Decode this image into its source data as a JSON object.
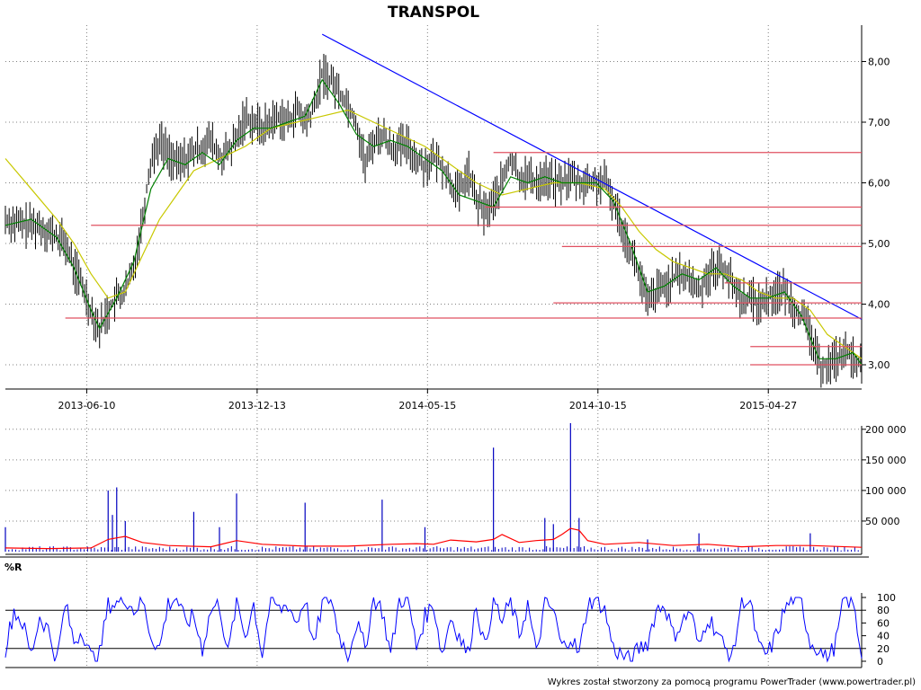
{
  "title": "TRANSPOL",
  "footer": "Wykres został stworzony za pomocą programu PowerTrader (www.powertrader.pl)",
  "colors": {
    "price_bar": "#000000",
    "ma_short": "#008000",
    "ma_long": "#c8c800",
    "trend_line": "#0000ff",
    "support_lines": "#e05060",
    "volume_bars": "#0000c0",
    "volume_ma": "#ff0000",
    "williams": "#0000ff",
    "grid": "#808080"
  },
  "chart_data": [
    {
      "type": "line",
      "name": "price",
      "title": "TRANSPOL",
      "x_tick_labels": [
        "2013-06-10",
        "2013-12-13",
        "2014-05-15",
        "2014-10-15",
        "2015-04-27"
      ],
      "y_tick_labels": [
        "3,00",
        "4,00",
        "5,00",
        "6,00",
        "7,00",
        "8,00"
      ],
      "ylim": [
        2.6,
        8.6
      ],
      "xlim": [
        0,
        100
      ],
      "grid": true,
      "x_tick_positions": [
        9.5,
        29.4,
        49.3,
        69.2,
        89.1
      ],
      "close": [
        [
          0,
          5.4
        ],
        [
          2,
          5.3
        ],
        [
          4,
          5.3
        ],
        [
          6,
          5.1
        ],
        [
          7,
          5.0
        ],
        [
          8,
          4.6
        ],
        [
          9,
          4.3
        ],
        [
          10,
          3.9
        ],
        [
          11,
          3.6
        ],
        [
          12,
          3.9
        ],
        [
          13,
          4.1
        ],
        [
          14,
          4.2
        ],
        [
          15,
          4.6
        ],
        [
          16,
          5.4
        ],
        [
          17,
          6.4
        ],
        [
          18,
          6.7
        ],
        [
          19,
          6.5
        ],
        [
          20,
          6.3
        ],
        [
          21,
          6.4
        ],
        [
          22,
          6.5
        ],
        [
          23,
          6.6
        ],
        [
          24,
          6.7
        ],
        [
          25,
          6.4
        ],
        [
          26,
          6.5
        ],
        [
          27,
          6.7
        ],
        [
          28,
          7.1
        ],
        [
          29,
          7.0
        ],
        [
          30,
          6.9
        ],
        [
          31,
          7.0
        ],
        [
          32,
          7.1
        ],
        [
          33,
          7.0
        ],
        [
          34,
          7.2
        ],
        [
          35,
          7.0
        ],
        [
          36,
          7.2
        ],
        [
          37,
          7.8
        ],
        [
          38,
          7.7
        ],
        [
          39,
          7.5
        ],
        [
          40,
          7.3
        ],
        [
          41,
          7.0
        ],
        [
          42,
          6.3
        ],
        [
          43,
          6.7
        ],
        [
          44,
          6.8
        ],
        [
          45,
          6.6
        ],
        [
          46,
          6.6
        ],
        [
          47,
          6.6
        ],
        [
          48,
          6.4
        ],
        [
          49,
          6.3
        ],
        [
          50,
          6.4
        ],
        [
          51,
          6.3
        ],
        [
          52,
          6.0
        ],
        [
          53,
          5.8
        ],
        [
          54,
          6.2
        ],
        [
          55,
          5.7
        ],
        [
          56,
          5.5
        ],
        [
          57,
          5.7
        ],
        [
          58,
          6.0
        ],
        [
          59,
          6.4
        ],
        [
          60,
          6.1
        ],
        [
          61,
          6.1
        ],
        [
          62,
          6.0
        ],
        [
          63,
          6.1
        ],
        [
          64,
          6.0
        ],
        [
          65,
          6.0
        ],
        [
          66,
          6.1
        ],
        [
          67,
          6.0
        ],
        [
          68,
          6.0
        ],
        [
          69,
          6.0
        ],
        [
          70,
          6.0
        ],
        [
          71,
          5.7
        ],
        [
          72,
          5.3
        ],
        [
          73,
          4.9
        ],
        [
          74,
          4.5
        ],
        [
          75,
          4.0
        ],
        [
          76,
          4.2
        ],
        [
          77,
          4.3
        ],
        [
          78,
          4.4
        ],
        [
          79,
          4.5
        ],
        [
          80,
          4.4
        ],
        [
          81,
          4.2
        ],
        [
          82,
          4.5
        ],
        [
          83,
          4.6
        ],
        [
          84,
          4.6
        ],
        [
          85,
          4.3
        ],
        [
          86,
          4.1
        ],
        [
          87,
          4.1
        ],
        [
          88,
          4.0
        ],
        [
          89,
          4.1
        ],
        [
          90,
          4.2
        ],
        [
          91,
          4.2
        ],
        [
          92,
          4.0
        ],
        [
          93,
          3.8
        ],
        [
          94,
          3.5
        ],
        [
          95,
          3.0
        ],
        [
          96,
          3.0
        ],
        [
          97,
          3.1
        ],
        [
          98,
          3.2
        ],
        [
          99,
          3.1
        ],
        [
          100,
          3.0
        ]
      ],
      "sma_short": [
        [
          0,
          5.3
        ],
        [
          3,
          5.4
        ],
        [
          6,
          5.1
        ],
        [
          8,
          4.6
        ],
        [
          10,
          3.9
        ],
        [
          11,
          3.6
        ],
        [
          13,
          4.1
        ],
        [
          15,
          4.7
        ],
        [
          17,
          5.9
        ],
        [
          19,
          6.4
        ],
        [
          21,
          6.3
        ],
        [
          23,
          6.5
        ],
        [
          25,
          6.3
        ],
        [
          27,
          6.7
        ],
        [
          29,
          6.9
        ],
        [
          31,
          6.9
        ],
        [
          33,
          7.0
        ],
        [
          35,
          7.1
        ],
        [
          37,
          7.7
        ],
        [
          39,
          7.3
        ],
        [
          41,
          6.8
        ],
        [
          43,
          6.6
        ],
        [
          45,
          6.7
        ],
        [
          47,
          6.6
        ],
        [
          49,
          6.4
        ],
        [
          51,
          6.2
        ],
        [
          53,
          5.8
        ],
        [
          55,
          5.7
        ],
        [
          57,
          5.6
        ],
        [
          59,
          6.1
        ],
        [
          61,
          6.0
        ],
        [
          63,
          6.1
        ],
        [
          65,
          6.0
        ],
        [
          67,
          6.0
        ],
        [
          69,
          6.0
        ],
        [
          71,
          5.7
        ],
        [
          73,
          5.0
        ],
        [
          75,
          4.2
        ],
        [
          77,
          4.3
        ],
        [
          79,
          4.5
        ],
        [
          81,
          4.4
        ],
        [
          83,
          4.6
        ],
        [
          85,
          4.3
        ],
        [
          87,
          4.1
        ],
        [
          89,
          4.1
        ],
        [
          91,
          4.2
        ],
        [
          93,
          3.8
        ],
        [
          95,
          3.1
        ],
        [
          97,
          3.1
        ],
        [
          99,
          3.2
        ],
        [
          100,
          3.0
        ]
      ],
      "sma_long": [
        [
          0,
          6.4
        ],
        [
          3,
          5.9
        ],
        [
          6,
          5.4
        ],
        [
          8,
          5.0
        ],
        [
          10,
          4.5
        ],
        [
          12,
          4.1
        ],
        [
          14,
          4.2
        ],
        [
          16,
          4.8
        ],
        [
          18,
          5.4
        ],
        [
          20,
          5.8
        ],
        [
          22,
          6.2
        ],
        [
          25,
          6.4
        ],
        [
          28,
          6.6
        ],
        [
          31,
          6.9
        ],
        [
          34,
          7.0
        ],
        [
          37,
          7.1
        ],
        [
          40,
          7.2
        ],
        [
          43,
          7.0
        ],
        [
          46,
          6.8
        ],
        [
          49,
          6.6
        ],
        [
          52,
          6.3
        ],
        [
          55,
          6.0
        ],
        [
          58,
          5.8
        ],
        [
          61,
          5.9
        ],
        [
          64,
          6.0
        ],
        [
          67,
          6.0
        ],
        [
          70,
          5.9
        ],
        [
          72,
          5.6
        ],
        [
          74,
          5.2
        ],
        [
          76,
          4.9
        ],
        [
          78,
          4.7
        ],
        [
          80,
          4.6
        ],
        [
          82,
          4.5
        ],
        [
          84,
          4.5
        ],
        [
          86,
          4.4
        ],
        [
          88,
          4.2
        ],
        [
          90,
          4.1
        ],
        [
          92,
          4.1
        ],
        [
          94,
          3.9
        ],
        [
          96,
          3.5
        ],
        [
          98,
          3.3
        ],
        [
          100,
          3.1
        ]
      ],
      "trend_line": [
        [
          37,
          8.45
        ],
        [
          100,
          3.75
        ]
      ],
      "horizontal_levels": [
        {
          "y": 6.5,
          "x_from": 57,
          "x_to": 100
        },
        {
          "y": 5.6,
          "x_from": 56,
          "x_to": 100
        },
        {
          "y": 5.3,
          "x_from": 10,
          "x_to": 100
        },
        {
          "y": 4.95,
          "x_from": 65,
          "x_to": 100
        },
        {
          "y": 4.35,
          "x_from": 84,
          "x_to": 100
        },
        {
          "y": 4.02,
          "x_from": 64,
          "x_to": 100
        },
        {
          "y": 3.77,
          "x_from": 7,
          "x_to": 100
        },
        {
          "y": 3.3,
          "x_from": 87,
          "x_to": 100
        },
        {
          "y": 3.0,
          "x_from": 87,
          "x_to": 100
        }
      ]
    },
    {
      "type": "bar",
      "name": "volume",
      "y_tick_labels": [
        "50 000",
        "100 000",
        "150 000",
        "200 000"
      ],
      "ylim": [
        0,
        210000
      ],
      "spikes": [
        [
          0,
          40000
        ],
        [
          12,
          100000
        ],
        [
          13,
          105000
        ],
        [
          12.5,
          60000
        ],
        [
          14,
          50000
        ],
        [
          22,
          65000
        ],
        [
          25,
          40000
        ],
        [
          27,
          95000
        ],
        [
          35,
          80000
        ],
        [
          44,
          85000
        ],
        [
          49,
          40000
        ],
        [
          57,
          170000
        ],
        [
          63,
          55000
        ],
        [
          64,
          45000
        ],
        [
          66,
          210000
        ],
        [
          67,
          55000
        ],
        [
          75,
          20000
        ],
        [
          81,
          30000
        ],
        [
          94,
          30000
        ]
      ],
      "volume_ma": [
        [
          0,
          6000
        ],
        [
          5,
          5000
        ],
        [
          10,
          6000
        ],
        [
          12,
          20000
        ],
        [
          14,
          25000
        ],
        [
          16,
          15000
        ],
        [
          19,
          10000
        ],
        [
          24,
          8000
        ],
        [
          27,
          18000
        ],
        [
          30,
          12000
        ],
        [
          35,
          9000
        ],
        [
          40,
          9000
        ],
        [
          45,
          12000
        ],
        [
          48,
          13000
        ],
        [
          50,
          12000
        ],
        [
          52,
          19000
        ],
        [
          55,
          16000
        ],
        [
          57,
          20000
        ],
        [
          58,
          28000
        ],
        [
          60,
          15000
        ],
        [
          62,
          18000
        ],
        [
          64,
          20000
        ],
        [
          65,
          28000
        ],
        [
          66,
          38000
        ],
        [
          67,
          35000
        ],
        [
          68,
          18000
        ],
        [
          70,
          12000
        ],
        [
          74,
          15000
        ],
        [
          78,
          10000
        ],
        [
          82,
          12000
        ],
        [
          86,
          8000
        ],
        [
          90,
          10000
        ],
        [
          94,
          10000
        ],
        [
          100,
          7000
        ]
      ]
    },
    {
      "type": "line",
      "name": "%R",
      "label": "%R",
      "y_tick_labels": [
        "0",
        "20",
        "40",
        "60",
        "80",
        "100"
      ],
      "ylim": [
        0,
        100
      ],
      "reference_levels": [
        20,
        80
      ],
      "values": [
        [
          0,
          20
        ],
        [
          1,
          80
        ],
        [
          2,
          60
        ],
        [
          3,
          10
        ],
        [
          4,
          70
        ],
        [
          5,
          50
        ],
        [
          6,
          0
        ],
        [
          7,
          90
        ],
        [
          8,
          30
        ],
        [
          9,
          50
        ],
        [
          10,
          5
        ],
        [
          11,
          10
        ],
        [
          12,
          90
        ],
        [
          13,
          90
        ],
        [
          14,
          100
        ],
        [
          15,
          80
        ],
        [
          16,
          95
        ],
        [
          17,
          40
        ],
        [
          18,
          20
        ],
        [
          19,
          90
        ],
        [
          20,
          100
        ],
        [
          21,
          60
        ],
        [
          22,
          70
        ],
        [
          23,
          20
        ],
        [
          24,
          80
        ],
        [
          25,
          90
        ],
        [
          26,
          10
        ],
        [
          27,
          95
        ],
        [
          28,
          40
        ],
        [
          29,
          90
        ],
        [
          30,
          10
        ],
        [
          31,
          100
        ],
        [
          32,
          80
        ],
        [
          33,
          90
        ],
        [
          34,
          60
        ],
        [
          35,
          100
        ],
        [
          36,
          20
        ],
        [
          37,
          90
        ],
        [
          38,
          100
        ],
        [
          39,
          40
        ],
        [
          40,
          10
        ],
        [
          41,
          60
        ],
        [
          42,
          20
        ],
        [
          43,
          100
        ],
        [
          44,
          80
        ],
        [
          45,
          10
        ],
        [
          46,
          95
        ],
        [
          47,
          100
        ],
        [
          48,
          20
        ],
        [
          49,
          70
        ],
        [
          50,
          90
        ],
        [
          51,
          10
        ],
        [
          52,
          70
        ],
        [
          53,
          40
        ],
        [
          54,
          10
        ],
        [
          55,
          90
        ],
        [
          56,
          20
        ],
        [
          57,
          100
        ],
        [
          58,
          60
        ],
        [
          59,
          95
        ],
        [
          60,
          40
        ],
        [
          61,
          90
        ],
        [
          62,
          10
        ],
        [
          63,
          90
        ],
        [
          64,
          80
        ],
        [
          65,
          20
        ],
        [
          66,
          40
        ],
        [
          67,
          10
        ],
        [
          68,
          90
        ],
        [
          69,
          100
        ],
        [
          70,
          80
        ],
        [
          71,
          20
        ],
        [
          72,
          10
        ],
        [
          73,
          0
        ],
        [
          74,
          20
        ],
        [
          75,
          30
        ],
        [
          76,
          80
        ],
        [
          77,
          90
        ],
        [
          78,
          40
        ],
        [
          79,
          60
        ],
        [
          80,
          80
        ],
        [
          81,
          20
        ],
        [
          82,
          70
        ],
        [
          83,
          50
        ],
        [
          84,
          20
        ],
        [
          85,
          10
        ],
        [
          86,
          100
        ],
        [
          87,
          90
        ],
        [
          88,
          20
        ],
        [
          89,
          10
        ],
        [
          90,
          40
        ],
        [
          91,
          80
        ],
        [
          92,
          100
        ],
        [
          93,
          90
        ],
        [
          94,
          30
        ],
        [
          95,
          20
        ],
        [
          96,
          0
        ],
        [
          97,
          30
        ],
        [
          98,
          100
        ],
        [
          99,
          90
        ],
        [
          100,
          10
        ]
      ]
    }
  ]
}
